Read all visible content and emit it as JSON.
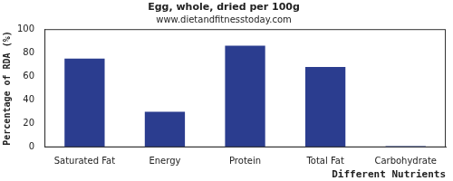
{
  "chart_data": {
    "type": "bar",
    "title": "Egg, whole, dried per 100g",
    "subtitle": "www.dietandfitnesstoday.com",
    "x_label": "Different Nutrients",
    "y_label": "Percentage of RDA (%)",
    "categories": [
      "Saturated Fat",
      "Energy",
      "Protein",
      "Total Fat",
      "Carbohydrate"
    ],
    "values": [
      75,
      30,
      86,
      68,
      1
    ],
    "color": "#2b3d8f",
    "ylim": [
      0,
      100
    ],
    "yticks": [
      0,
      20,
      40,
      60,
      80,
      100
    ],
    "grid": false
  }
}
